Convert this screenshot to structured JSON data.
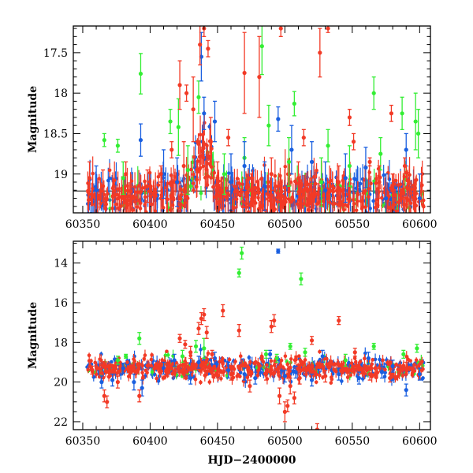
{
  "colors": {
    "green": "#33ee33",
    "blue": "#1a5fe0",
    "red": "#f23a26",
    "axis": "#000000"
  },
  "chart_data": [
    {
      "type": "scatter",
      "xlim": [
        60343,
        60608
      ],
      "ylim": [
        19.48,
        17.17
      ],
      "y_inverted": true,
      "xticks": [
        60350,
        60400,
        60450,
        60500,
        60550,
        60600
      ],
      "xtick_labels": [
        "60350",
        "60400",
        "60450",
        "60500",
        "60550",
        "60600"
      ],
      "yticks": [
        17.5,
        18,
        18.5,
        19
      ],
      "ytick_labels": [
        "17.5",
        "18",
        "18.5",
        "19"
      ],
      "ylabel": "Magnitude",
      "xlabel": "",
      "reference_line_y": 19.21,
      "series": [
        {
          "color": "green",
          "points": [
            [
              60366,
              18.58,
              0.08
            ],
            [
              60376,
              18.65,
              0.08
            ],
            [
              60393,
              17.76,
              0.25
            ],
            [
              60415,
              18.35,
              0.15
            ],
            [
              60421,
              18.42,
              0.35
            ],
            [
              60428,
              18.95,
              0.3
            ],
            [
              60436,
              18.05,
              0.2
            ],
            [
              60483,
              17.42,
              0.35
            ],
            [
              60488,
              18.4,
              0.25
            ],
            [
              60503,
              18.85,
              0.3
            ],
            [
              60507,
              18.13,
              0.15
            ],
            [
              60527,
              19.1,
              0.3
            ],
            [
              60532,
              18.65,
              0.2
            ],
            [
              60548,
              18.9,
              0.25
            ],
            [
              60566,
              18.0,
              0.2
            ],
            [
              60571,
              18.75,
              0.2
            ],
            [
              60587,
              18.25,
              0.2
            ],
            [
              60597,
              18.35,
              0.35
            ],
            [
              60599,
              18.5,
              0.3
            ],
            [
              60455,
              19.0,
              0.25
            ],
            [
              60470,
              18.8,
              0.25
            ],
            [
              60380,
              19.05,
              0.2
            ]
          ]
        },
        {
          "color": "blue",
          "points": [
            [
              60393,
              18.58,
              0.2
            ],
            [
              60438,
              17.55,
              0.3
            ],
            [
              60440,
              18.25,
              0.2
            ],
            [
              60448,
              18.35,
              0.25
            ],
            [
              60495,
              18.32,
              0.15
            ],
            [
              60470,
              18.9,
              0.3
            ],
            [
              60520,
              18.85,
              0.25
            ],
            [
              60560,
              18.92,
              0.25
            ],
            [
              60590,
              18.7,
              0.2
            ],
            [
              60410,
              19.0,
              0.3
            ],
            [
              60460,
              19.1,
              0.35
            ],
            [
              60530,
              19.2,
              0.35
            ],
            [
              60575,
              19.3,
              0.3
            ],
            [
              60360,
              19.2,
              0.3
            ],
            [
              60505,
              18.7,
              0.3
            ],
            [
              60545,
              19.05,
              0.3
            ],
            [
              60420,
              19.1,
              0.3
            ],
            [
              60485,
              19.15,
              0.3
            ],
            [
              60600,
              19.3,
              0.3
            ]
          ]
        },
        {
          "color": "red",
          "points": [
            [
              60382,
              19.0,
              0.15
            ],
            [
              60408,
              19.0,
              0.1
            ],
            [
              60416,
              18.7,
              0.1
            ],
            [
              60422,
              17.9,
              0.3
            ],
            [
              60427,
              18.0,
              0.1
            ],
            [
              60432,
              18.2,
              0.4
            ],
            [
              60437,
              17.4,
              0.25
            ],
            [
              60440,
              17.2,
              0.1
            ],
            [
              60443,
              17.45,
              0.1
            ],
            [
              60458,
              18.55,
              0.1
            ],
            [
              60470,
              17.75,
              0.5
            ],
            [
              60481,
              17.8,
              0.5
            ],
            [
              60497,
              17.2,
              0.1
            ],
            [
              60514,
              18.55,
              0.1
            ],
            [
              60526,
              17.5,
              0.3
            ],
            [
              60532,
              17.2,
              0.05
            ],
            [
              60548,
              18.3,
              0.1
            ],
            [
              60551,
              18.6,
              0.1
            ],
            [
              60563,
              18.85,
              0.05
            ],
            [
              60579,
              18.25,
              0.1
            ],
            [
              60589,
              18.9,
              0.1
            ],
            [
              60591,
              19.08,
              0.1
            ],
            [
              60398,
              19.15,
              0.2
            ],
            [
              60450,
              19.05,
              0.2
            ],
            [
              60475,
              19.2,
              0.2
            ],
            [
              60510,
              19.05,
              0.2
            ],
            [
              60540,
              19.1,
              0.2
            ],
            [
              60570,
              19.1,
              0.2
            ],
            [
              60355,
              19.05,
              0.2
            ],
            [
              60365,
              19.15,
              0.2
            ],
            [
              60425,
              18.9,
              0.3
            ],
            [
              60445,
              18.6,
              0.3
            ],
            [
              60490,
              19.0,
              0.2
            ],
            [
              60520,
              19.25,
              0.2
            ],
            [
              60580,
              19.2,
              0.2
            ]
          ]
        }
      ]
    },
    {
      "type": "scatter",
      "xlim": [
        60343,
        60608
      ],
      "ylim": [
        22.4,
        12.9
      ],
      "y_inverted": true,
      "xticks": [
        60350,
        60400,
        60450,
        60500,
        60550,
        60600
      ],
      "xtick_labels": [
        "60350",
        "60400",
        "60450",
        "60500",
        "60550",
        "60600"
      ],
      "yticks": [
        14,
        16,
        18,
        20,
        22
      ],
      "ytick_labels": [
        "14",
        "16",
        "18",
        "20",
        "22"
      ],
      "ylabel": "Magnitude",
      "xlabel": "HJD−2400000",
      "series": [
        {
          "color": "green",
          "points": [
            [
              60382,
              18.7,
              0.1
            ],
            [
              60392,
              17.8,
              0.3
            ],
            [
              60424,
              18.7,
              0.3
            ],
            [
              60434,
              18.2,
              0.3
            ],
            [
              60440,
              18.3,
              0.5
            ],
            [
              60466,
              14.5,
              0.2
            ],
            [
              60468,
              13.5,
              0.3
            ],
            [
              60486,
              18.6,
              0.2
            ],
            [
              60494,
              18.8,
              0.2
            ],
            [
              60504,
              18.2,
              0.15
            ],
            [
              60512,
              14.8,
              0.3
            ],
            [
              60515,
              18.5,
              0.2
            ],
            [
              60545,
              18.9,
              0.3
            ],
            [
              60566,
              18.2,
              0.15
            ],
            [
              60588,
              18.6,
              0.2
            ],
            [
              60598,
              18.3,
              0.2
            ],
            [
              60376,
              18.9,
              0.2
            ]
          ]
        },
        {
          "color": "blue",
          "points": [
            [
              60364,
              20.0,
              0.3
            ],
            [
              60372,
              19.9,
              0.3
            ],
            [
              60380,
              19.3,
              0.25
            ],
            [
              60388,
              20.0,
              0.4
            ],
            [
              60394,
              20.3,
              0.4
            ],
            [
              60410,
              19.3,
              0.3
            ],
            [
              60418,
              18.9,
              0.3
            ],
            [
              60430,
              19.8,
              0.3
            ],
            [
              60436,
              19.0,
              0.3
            ],
            [
              60448,
              18.8,
              0.3
            ],
            [
              60458,
              19.4,
              0.4
            ],
            [
              60470,
              19.6,
              0.3
            ],
            [
              60478,
              19.8,
              0.3
            ],
            [
              60489,
              18.6,
              0.2
            ],
            [
              60495,
              13.4,
              0.1
            ],
            [
              60500,
              19.7,
              0.3
            ],
            [
              60508,
              19.5,
              0.3
            ],
            [
              60520,
              19.9,
              0.3
            ],
            [
              60528,
              18.7,
              0.3
            ],
            [
              60540,
              19.6,
              0.3
            ],
            [
              60555,
              19.8,
              0.3
            ],
            [
              60562,
              18.8,
              0.3
            ],
            [
              60572,
              19.5,
              0.3
            ],
            [
              60580,
              19.2,
              0.3
            ],
            [
              60590,
              20.4,
              0.3
            ],
            [
              60600,
              19.6,
              0.3
            ]
          ]
        },
        {
          "color": "red",
          "points": [
            [
              60357,
              19.4,
              0.2
            ],
            [
              60366,
              20.7,
              0.3
            ],
            [
              60368,
              21.0,
              0.3
            ],
            [
              60376,
              20.0,
              0.3
            ],
            [
              60392,
              20.7,
              0.3
            ],
            [
              60422,
              17.8,
              0.2
            ],
            [
              60426,
              18.1,
              0.2
            ],
            [
              60430,
              18.5,
              0.3
            ],
            [
              60436,
              17.3,
              0.3
            ],
            [
              60438,
              16.8,
              0.3
            ],
            [
              60440,
              16.6,
              0.3
            ],
            [
              60442,
              17.5,
              0.3
            ],
            [
              60446,
              18.6,
              0.2
            ],
            [
              60454,
              16.4,
              0.3
            ],
            [
              60466,
              17.4,
              0.3
            ],
            [
              60474,
              20.2,
              0.3
            ],
            [
              60486,
              19.6,
              0.3
            ],
            [
              60490,
              17.2,
              0.3
            ],
            [
              60492,
              16.9,
              0.3
            ],
            [
              60496,
              20.7,
              0.4
            ],
            [
              60500,
              21.5,
              0.5
            ],
            [
              60502,
              21.2,
              0.3
            ],
            [
              60504,
              20.2,
              0.4
            ],
            [
              60507,
              20.8,
              0.3
            ],
            [
              60511,
              19.8,
              0.3
            ],
            [
              60520,
              17.9,
              0.2
            ],
            [
              60524,
              22.4,
              0.3
            ],
            [
              60540,
              16.9,
              0.2
            ],
            [
              60552,
              18.5,
              0.2
            ],
            [
              60563,
              19.6,
              0.3
            ],
            [
              60578,
              19.8,
              0.2
            ],
            [
              60590,
              19.3,
              0.3
            ],
            [
              60412,
              19.4,
              0.3
            ],
            [
              60460,
              19.6,
              0.3
            ],
            [
              60530,
              19.7,
              0.3
            ]
          ]
        }
      ]
    }
  ]
}
